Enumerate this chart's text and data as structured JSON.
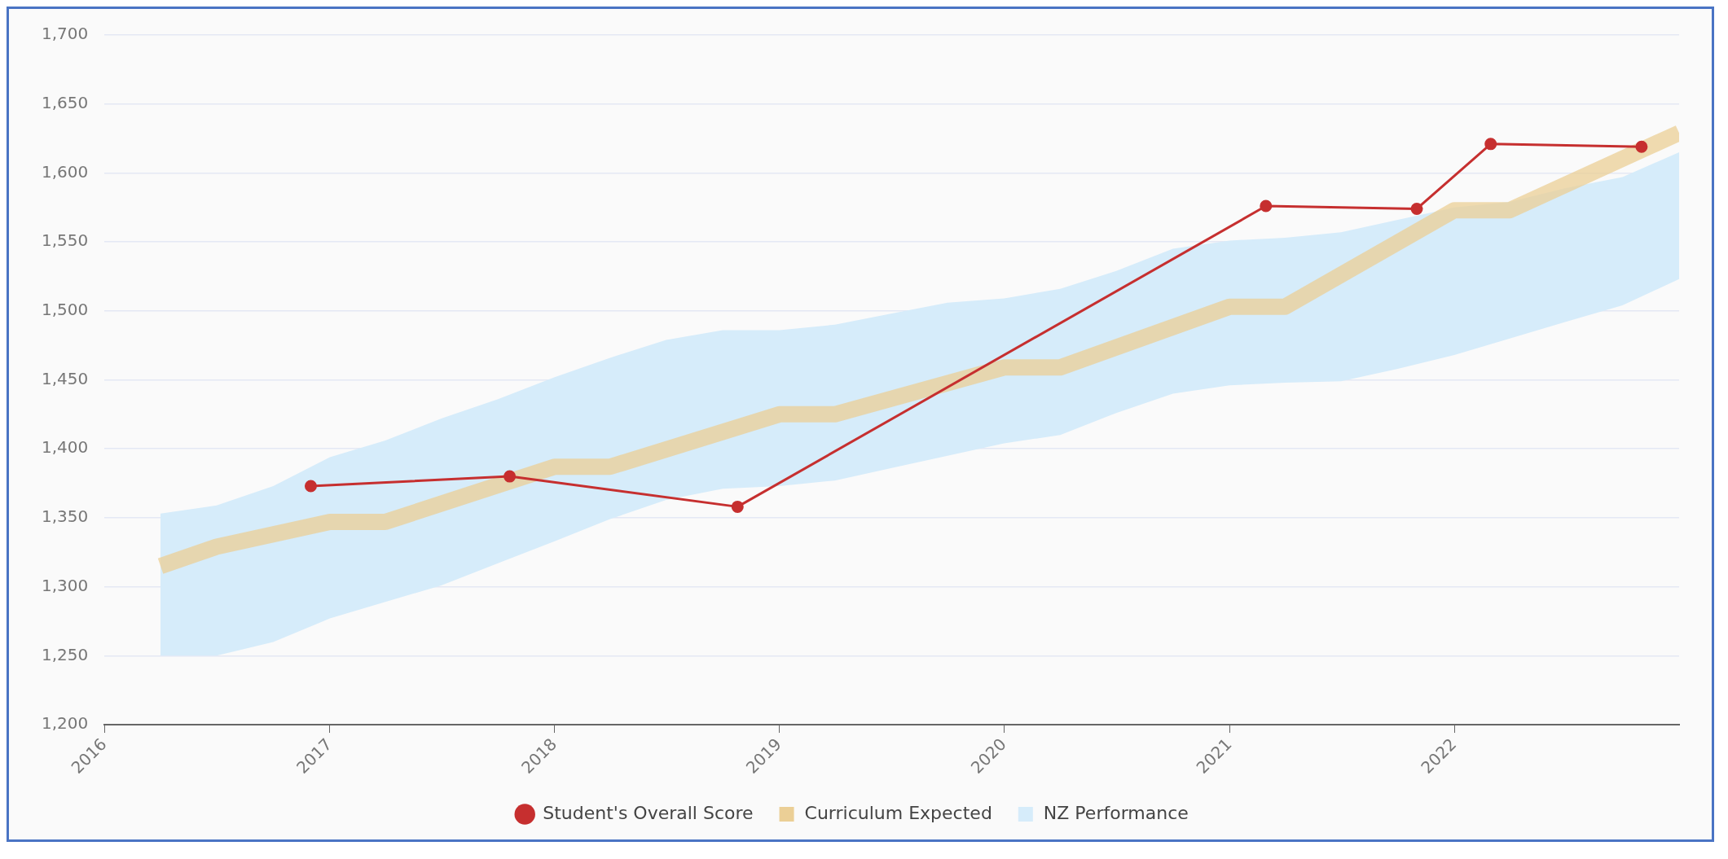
{
  "chart_data": {
    "type": "line",
    "xlim": [
      "2016-01-01",
      "2023-01-01"
    ],
    "xticks": [
      {
        "value": "2016-01-01",
        "label": "2016"
      },
      {
        "value": "2017-01-01",
        "label": "2017"
      },
      {
        "value": "2018-01-01",
        "label": "2018"
      },
      {
        "value": "2019-01-01",
        "label": "2019"
      },
      {
        "value": "2020-01-01",
        "label": "2020"
      },
      {
        "value": "2021-01-01",
        "label": "2021"
      },
      {
        "value": "2022-01-01",
        "label": "2022"
      }
    ],
    "ylim": [
      1200,
      1700
    ],
    "yticks": [
      {
        "value": 1200,
        "label": "1,200"
      },
      {
        "value": 1250,
        "label": "1,250"
      },
      {
        "value": 1300,
        "label": "1,300"
      },
      {
        "value": 1350,
        "label": "1,350"
      },
      {
        "value": 1400,
        "label": "1,400"
      },
      {
        "value": 1450,
        "label": "1,450"
      },
      {
        "value": 1500,
        "label": "1,500"
      },
      {
        "value": 1550,
        "label": "1,550"
      },
      {
        "value": 1600,
        "label": "1,600"
      },
      {
        "value": 1650,
        "label": "1,650"
      },
      {
        "value": 1700,
        "label": "1,700"
      }
    ],
    "grid": "y",
    "legend": "bottom",
    "line_style": "solid",
    "series": [
      {
        "name": "Student's Overall Score",
        "marker": "circle",
        "color": "#c62f2f",
        "x": [
          "2016-12-01",
          "2017-10-20",
          "2018-10-25",
          "2021-03-01",
          "2021-11-01",
          "2022-03-01",
          "2022-11-01"
        ],
        "values": [
          1373,
          1380,
          1358,
          1576,
          1574,
          1621,
          1619
        ]
      },
      {
        "name": "Curriculum Expected",
        "marker": "none",
        "color": "#ebcf96",
        "x": [
          "2016-04-01",
          "2016-07-01",
          "2017-01-01",
          "2017-04-01",
          "2018-01-01",
          "2018-04-01",
          "2019-01-01",
          "2019-04-01",
          "2020-01-01",
          "2020-04-01",
          "2021-01-01",
          "2021-04-01",
          "2022-01-01",
          "2022-04-01",
          "2023-01-01"
        ],
        "values": [
          1315,
          1329,
          1347,
          1347,
          1387,
          1387,
          1425,
          1425,
          1459,
          1459,
          1503,
          1503,
          1573,
          1573,
          1629
        ]
      },
      {
        "name": "NZ Performance",
        "type": "area",
        "color": "#d6ecfa",
        "x": [
          "2016-04-01",
          "2016-07-01",
          "2016-10-01",
          "2017-01-01",
          "2017-04-01",
          "2017-07-01",
          "2017-10-01",
          "2018-01-01",
          "2018-04-01",
          "2018-07-01",
          "2018-10-01",
          "2019-01-01",
          "2019-04-01",
          "2019-07-01",
          "2019-10-01",
          "2020-01-01",
          "2020-04-01",
          "2020-07-01",
          "2020-10-01",
          "2021-01-01",
          "2021-04-01",
          "2021-07-01",
          "2021-10-01",
          "2022-01-01",
          "2022-04-01",
          "2022-07-01",
          "2022-10-01",
          "2023-01-01"
        ],
        "values": [
          null,
          null,
          null,
          null,
          null,
          null,
          null,
          null,
          null,
          null,
          null,
          null,
          null,
          null,
          null,
          null,
          null,
          null,
          null,
          null,
          null,
          null,
          null,
          null,
          null,
          null,
          null,
          null
        ],
        "lower": [
          1250,
          1250,
          1260,
          1277,
          1289,
          1301,
          1317,
          1333,
          1349,
          1363,
          1371,
          1373,
          1377,
          1386,
          1395,
          1404,
          1410,
          1426,
          1440,
          1446,
          1448,
          1449,
          1458,
          1468,
          1480,
          1492,
          1504,
          1523
        ],
        "upper": [
          1353,
          1359,
          1373,
          1394,
          1406,
          1422,
          1436,
          1452,
          1466,
          1479,
          1486,
          1486,
          1490,
          1498,
          1506,
          1509,
          1516,
          1529,
          1545,
          1551,
          1553,
          1557,
          1566,
          1575,
          1579,
          1589,
          1597,
          1615
        ]
      }
    ]
  }
}
